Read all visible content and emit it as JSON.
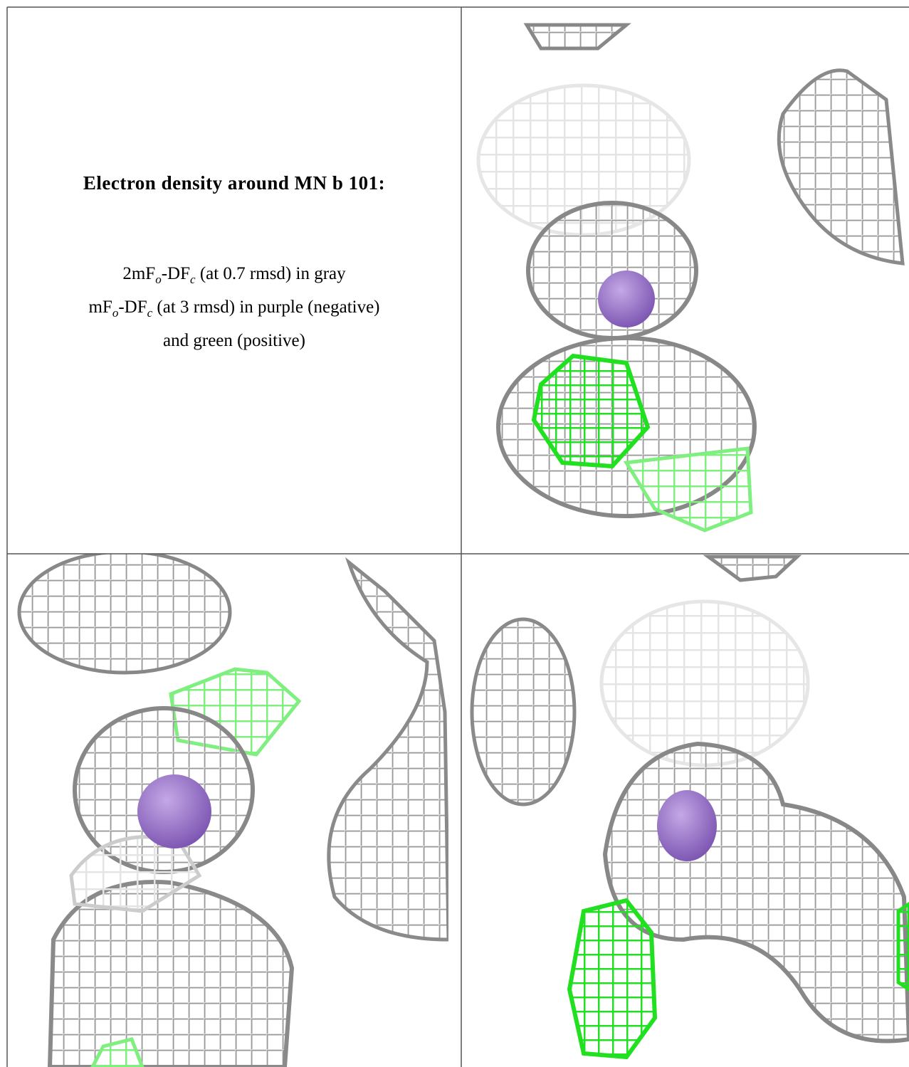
{
  "caption": {
    "title": "Electron density around MN b 101:",
    "lines": [
      [
        {
          "text": "2mF",
          "sub": "o"
        },
        {
          "text": "-DF",
          "sub": "c"
        },
        {
          "text": " (at 0.7 rmsd) in gray"
        }
      ],
      [
        {
          "text": "mF",
          "sub": "o"
        },
        {
          "text": "-DF",
          "sub": "c"
        },
        {
          "text": " (at 3 rmsd) in purple (negative)"
        }
      ],
      [
        {
          "text": "and green (positive)"
        }
      ]
    ]
  }
}
